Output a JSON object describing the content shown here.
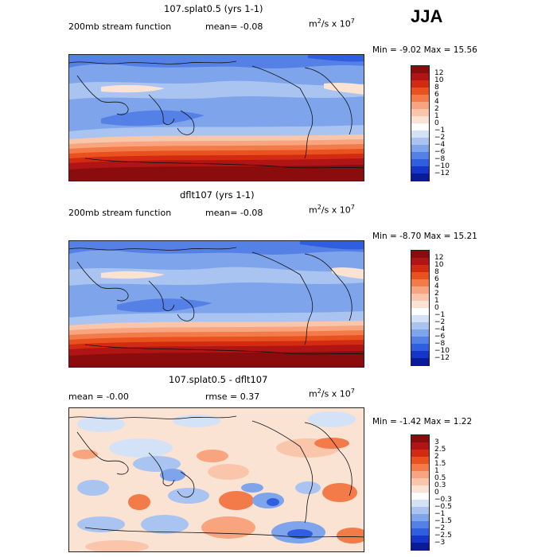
{
  "season": "JJA",
  "units_base": "m",
  "units_exp1": "2",
  "units_mid": "/s x 10",
  "units_exp2": "7",
  "panels": [
    {
      "title": "107.splat0.5 (yrs 1-1)",
      "left_text": "200mb stream function",
      "right_text": "mean=  -0.08",
      "minmax": "Min =  -9.02  Max =  15.56"
    },
    {
      "title": "dflt107 (yrs 1-1)",
      "left_text": "200mb stream function",
      "right_text": "mean=  -0.08",
      "minmax": "Min =  -8.70  Max =  15.21"
    },
    {
      "title": "107.splat0.5 - dflt107",
      "left_text": "mean =  -0.00",
      "right_text": "rmse =   0.37",
      "minmax": "Min =  -1.42  Max =   1.22"
    }
  ],
  "chart_data": [
    {
      "type": "heatmap",
      "title": "107.splat0.5 (yrs 1-1)",
      "subtitle": "200mb stream function  mean= -0.08",
      "units": "m^2/s x 10^7",
      "min": -9.02,
      "max": 15.56,
      "mean": -0.08,
      "levels": [
        12,
        10,
        8,
        6,
        4,
        2,
        1,
        0,
        -1,
        -2,
        -4,
        -6,
        -8,
        -10,
        -12
      ],
      "colors": [
        "#8a0c0c",
        "#b11414",
        "#d32b12",
        "#e9521f",
        "#f37b49",
        "#f8a47e",
        "#f9c6ac",
        "#fbe3d4",
        "#ffffff",
        "#d3e2f7",
        "#a9c4f0",
        "#7ea5ec",
        "#5581e6",
        "#2f5fe0",
        "#1536c9",
        "#0a1a98"
      ]
    },
    {
      "type": "heatmap",
      "title": "dflt107 (yrs 1-1)",
      "subtitle": "200mb stream function  mean= -0.08",
      "units": "m^2/s x 10^7",
      "min": -8.7,
      "max": 15.21,
      "mean": -0.08,
      "levels": [
        12,
        10,
        8,
        6,
        4,
        2,
        1,
        0,
        -1,
        -2,
        -4,
        -6,
        -8,
        -10,
        -12
      ],
      "colors": [
        "#8a0c0c",
        "#b11414",
        "#d32b12",
        "#e9521f",
        "#f37b49",
        "#f8a47e",
        "#f9c6ac",
        "#fbe3d4",
        "#ffffff",
        "#d3e2f7",
        "#a9c4f0",
        "#7ea5ec",
        "#5581e6",
        "#2f5fe0",
        "#1536c9",
        "#0a1a98"
      ]
    },
    {
      "type": "heatmap",
      "title": "107.splat0.5 - dflt107",
      "subtitle": "mean = -0.00  rmse = 0.37",
      "units": "m^2/s x 10^7",
      "min": -1.42,
      "max": 1.22,
      "mean": -0.0,
      "rmse": 0.37,
      "levels": [
        "3",
        "2.5",
        "2",
        "1.5",
        "1",
        "0.5",
        "0.3",
        "0",
        "-0.3",
        "-0.5",
        "-1",
        "-1.5",
        "-2",
        "-2.5",
        "-3"
      ],
      "colors": [
        "#8a0c0c",
        "#b11414",
        "#d32b12",
        "#e9521f",
        "#f37b49",
        "#f8a47e",
        "#f9c6ac",
        "#fbe3d4",
        "#ffffff",
        "#d3e2f7",
        "#a9c4f0",
        "#7ea5ec",
        "#5581e6",
        "#2f5fe0",
        "#1536c9",
        "#0a1a98"
      ]
    }
  ]
}
